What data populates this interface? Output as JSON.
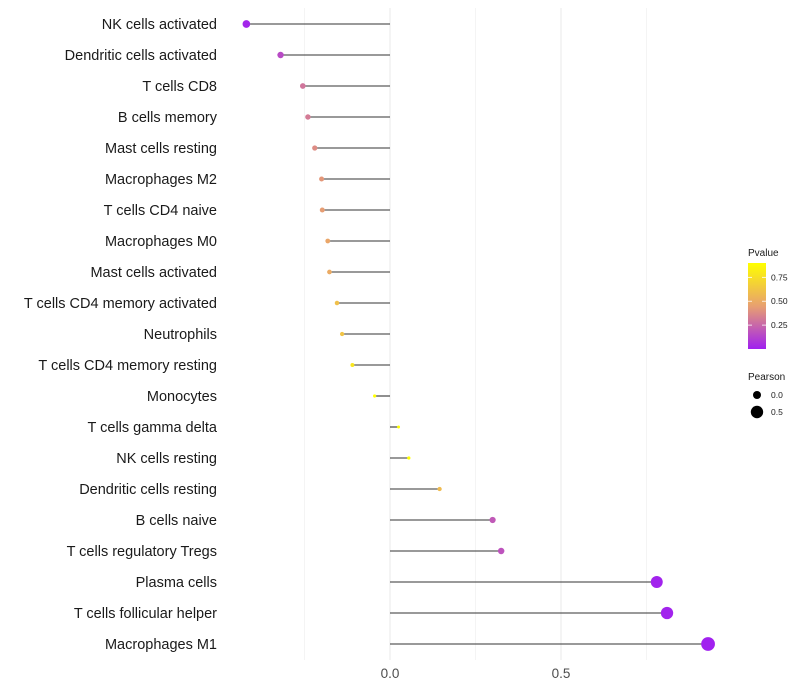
{
  "chart_data": {
    "type": "lollipop",
    "title": "",
    "xlabel": "",
    "ylabel": "",
    "categories": [
      "NK cells activated",
      "Dendritic cells activated",
      "T cells CD8",
      "B cells memory",
      "Mast cells resting",
      "Macrophages M2",
      "T cells CD4 naive",
      "Macrophages M0",
      "Mast cells activated",
      "T cells CD4 memory activated",
      "Neutrophils",
      "T cells CD4 memory resting",
      "Monocytes",
      "T cells gamma delta",
      "NK cells resting",
      "Dendritic cells resting",
      "B cells naive",
      "T cells regulatory  Tregs ",
      "Plasma cells",
      "T cells follicular helper",
      "Macrophages M1"
    ],
    "values": [
      -0.42,
      -0.32,
      -0.255,
      -0.24,
      -0.22,
      -0.2,
      -0.198,
      -0.182,
      -0.177,
      -0.155,
      -0.14,
      -0.11,
      -0.045,
      0.025,
      0.055,
      0.145,
      0.3,
      0.325,
      0.78,
      0.81,
      0.93
    ],
    "pvalues": [
      0.02,
      0.15,
      0.3,
      0.32,
      0.38,
      0.42,
      0.44,
      0.48,
      0.5,
      0.6,
      0.62,
      0.78,
      0.98,
      0.99,
      0.95,
      0.58,
      0.2,
      0.18,
      0.01,
      0.01,
      0.005
    ],
    "xlim": [
      -0.55,
      1.0
    ],
    "xticks": [
      0.0,
      0.5
    ],
    "xtick_labels": [
      "0.0",
      "0.5"
    ],
    "grid": true,
    "legend": {
      "placement": "right",
      "color": {
        "title": "Pvalue",
        "ticks": [
          0.25,
          0.5,
          0.75
        ],
        "tick_labels": [
          "0.25",
          "0.50",
          "0.75"
        ],
        "range": [
          0.0,
          0.9
        ],
        "colors": [
          "#a020f0",
          "#e8a070",
          "#ffff00"
        ]
      },
      "size": {
        "title": "Pearson",
        "ticks": [
          0.0,
          0.5
        ],
        "tick_labels": [
          "0.0",
          "0.5"
        ]
      }
    }
  }
}
